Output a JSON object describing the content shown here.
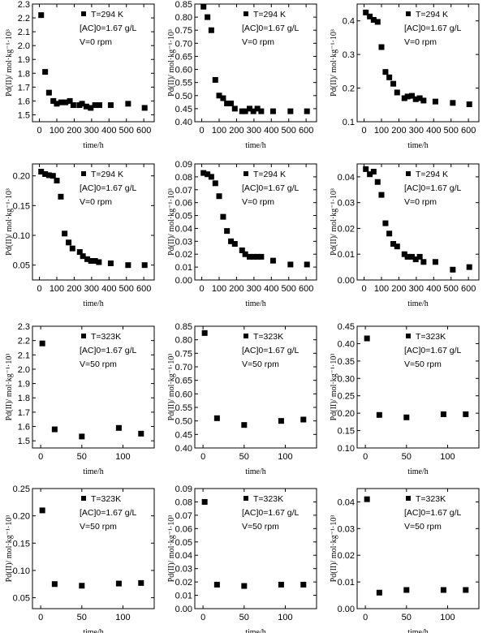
{
  "chart_data": [
    {
      "type": "scatter",
      "xlabel": "time/h",
      "ylabel": "Pd(II)/ mol·kg⁻¹·10³",
      "xlim": [
        -40,
        660
      ],
      "ylim": [
        1.45,
        2.3
      ],
      "xticks": [
        0,
        100,
        200,
        300,
        400,
        500,
        600
      ],
      "yticks": [
        1.5,
        1.6,
        1.7,
        1.8,
        1.9,
        2.0,
        2.1,
        2.2,
        2.3
      ],
      "ydec": 1,
      "legend": [
        "T=294 K",
        "[AC]0=1.67 g/L",
        "V=0 rpm"
      ],
      "x": [
        10,
        33,
        55,
        80,
        100,
        125,
        150,
        175,
        195,
        230,
        245,
        270,
        295,
        320,
        345,
        410,
        510,
        605
      ],
      "y": [
        2.22,
        1.81,
        1.66,
        1.6,
        1.58,
        1.59,
        1.59,
        1.6,
        1.57,
        1.57,
        1.58,
        1.56,
        1.55,
        1.57,
        1.57,
        1.57,
        1.58,
        1.55
      ]
    },
    {
      "type": "scatter",
      "xlabel": "time/h",
      "ylabel": "Pd(II)/ mol·kg⁻¹·10³",
      "xlim": [
        -40,
        660
      ],
      "ylim": [
        0.4,
        0.85
      ],
      "xticks": [
        0,
        100,
        200,
        300,
        400,
        500,
        600
      ],
      "yticks": [
        0.4,
        0.45,
        0.5,
        0.55,
        0.6,
        0.65,
        0.7,
        0.75,
        0.8,
        0.85
      ],
      "ydec": 2,
      "legend": [
        "T=294 K",
        "[AC]0=1.67 g/L",
        "V=0 rpm"
      ],
      "x": [
        10,
        33,
        55,
        78,
        100,
        123,
        145,
        168,
        190,
        232,
        250,
        275,
        297,
        320,
        342,
        410,
        510,
        605
      ],
      "y": [
        0.84,
        0.8,
        0.75,
        0.56,
        0.5,
        0.49,
        0.47,
        0.47,
        0.45,
        0.44,
        0.44,
        0.45,
        0.44,
        0.45,
        0.44,
        0.44,
        0.44,
        0.44
      ]
    },
    {
      "type": "scatter",
      "xlabel": "time/h",
      "ylabel": "Pd(II)/ mol·kg⁻¹·10³",
      "xlim": [
        -40,
        660
      ],
      "ylim": [
        0.1,
        0.45
      ],
      "xticks": [
        0,
        100,
        200,
        300,
        400,
        500,
        600
      ],
      "yticks": [
        0.1,
        0.2,
        0.3,
        0.4
      ],
      "ydec": 1,
      "legend": [
        "T=294 K",
        "[AC]0=1.67 g/L",
        "V=0 rpm"
      ],
      "x": [
        10,
        33,
        55,
        78,
        100,
        123,
        145,
        168,
        190,
        232,
        250,
        275,
        297,
        320,
        342,
        410,
        510,
        605
      ],
      "y": [
        0.425,
        0.413,
        0.403,
        0.397,
        0.322,
        0.248,
        0.232,
        0.213,
        0.187,
        0.17,
        0.175,
        0.177,
        0.167,
        0.17,
        0.163,
        0.16,
        0.156,
        0.152
      ]
    },
    {
      "type": "scatter",
      "xlabel": "time/h",
      "ylabel": "Pd(II)/ mol·kg⁻¹·10³",
      "xlim": [
        -40,
        660
      ],
      "ylim": [
        0.025,
        0.22
      ],
      "xticks": [
        0,
        100,
        200,
        300,
        400,
        500,
        600
      ],
      "yticks": [
        0.05,
        0.1,
        0.15,
        0.2
      ],
      "ydec": 2,
      "legend": [
        "T=294 K",
        "[AC]0=1.67 g/L",
        "V=0 rpm"
      ],
      "x": [
        10,
        33,
        55,
        78,
        100,
        123,
        145,
        168,
        190,
        232,
        250,
        275,
        297,
        320,
        342,
        410,
        510,
        605
      ],
      "y": [
        0.207,
        0.203,
        0.201,
        0.2,
        0.192,
        0.165,
        0.103,
        0.088,
        0.078,
        0.072,
        0.065,
        0.06,
        0.057,
        0.057,
        0.055,
        0.053,
        0.05,
        0.05
      ]
    },
    {
      "type": "scatter",
      "xlabel": "time/h",
      "ylabel": "Pd(II)/ mol·kg⁻¹·10³",
      "xlim": [
        -40,
        660
      ],
      "ylim": [
        0,
        0.09
      ],
      "xticks": [
        0,
        100,
        200,
        300,
        400,
        500,
        600
      ],
      "yticks": [
        0,
        0.01,
        0.02,
        0.03,
        0.04,
        0.05,
        0.06,
        0.07,
        0.08,
        0.09
      ],
      "ydec": 2,
      "legend": [
        "T=294 K",
        "[AC]0=1.67 g/L",
        "V=0 rpm"
      ],
      "x": [
        10,
        33,
        55,
        78,
        100,
        123,
        145,
        168,
        190,
        232,
        250,
        275,
        297,
        320,
        342,
        410,
        510,
        605
      ],
      "y": [
        0.083,
        0.082,
        0.08,
        0.075,
        0.065,
        0.049,
        0.038,
        0.03,
        0.028,
        0.023,
        0.02,
        0.018,
        0.018,
        0.018,
        0.018,
        0.015,
        0.012,
        0.012
      ]
    },
    {
      "type": "scatter",
      "xlabel": "time/h",
      "ylabel": "Pd(II)/ mol·kg⁻¹·10³",
      "xlim": [
        -40,
        660
      ],
      "ylim": [
        0,
        0.045
      ],
      "xticks": [
        0,
        100,
        200,
        300,
        400,
        500,
        600
      ],
      "yticks": [
        0,
        0.01,
        0.02,
        0.03,
        0.04
      ],
      "ydec": 2,
      "legend": [
        "T=294 K",
        "[AC]0=1.67 g/L",
        "V=0 rpm"
      ],
      "x": [
        10,
        33,
        55,
        78,
        100,
        123,
        145,
        168,
        190,
        232,
        250,
        275,
        297,
        320,
        342,
        410,
        510,
        605
      ],
      "y": [
        0.043,
        0.041,
        0.042,
        0.038,
        0.033,
        0.022,
        0.018,
        0.014,
        0.013,
        0.01,
        0.009,
        0.009,
        0.008,
        0.009,
        0.007,
        0.007,
        0.004,
        0.005
      ]
    },
    {
      "type": "scatter",
      "xlabel": "time/h",
      "ylabel": "Pd(II)/ mol·kg⁻¹·10³",
      "xlim": [
        -10,
        138
      ],
      "ylim": [
        1.45,
        2.3
      ],
      "xticks": [
        0,
        50,
        100
      ],
      "yticks": [
        1.5,
        1.6,
        1.7,
        1.8,
        1.9,
        2.0,
        2.1,
        2.2,
        2.3
      ],
      "ydec": 1,
      "legend": [
        "T=323K",
        "[AC]0=1.67 g/L",
        "V=50 rpm"
      ],
      "x": [
        2,
        17,
        50,
        95,
        122
      ],
      "y": [
        2.18,
        1.58,
        1.53,
        1.59,
        1.55
      ]
    },
    {
      "type": "scatter",
      "xlabel": "time/h",
      "ylabel": "Pd(II)/ mol·kg⁻¹·10³",
      "xlim": [
        -10,
        138
      ],
      "ylim": [
        0.4,
        0.85
      ],
      "xticks": [
        0,
        50,
        100
      ],
      "yticks": [
        0.4,
        0.45,
        0.5,
        0.55,
        0.6,
        0.65,
        0.7,
        0.75,
        0.8,
        0.85
      ],
      "ydec": 2,
      "legend": [
        "T=323K",
        "[AC]0=1.67 g/L",
        "V=50 rpm"
      ],
      "x": [
        2,
        17,
        50,
        95,
        122
      ],
      "y": [
        0.825,
        0.51,
        0.485,
        0.5,
        0.505
      ]
    },
    {
      "type": "scatter",
      "xlabel": "time/h",
      "ylabel": "Pd(II)/ mol·kg⁻¹·10³",
      "xlim": [
        -10,
        138
      ],
      "ylim": [
        0.1,
        0.45
      ],
      "xticks": [
        0,
        50,
        100
      ],
      "yticks": [
        0.1,
        0.15,
        0.2,
        0.25,
        0.3,
        0.35,
        0.4,
        0.45
      ],
      "ydec": 2,
      "legend": [
        "T=323K",
        "[AC]0=1.67 g/L",
        "V=50 rpm"
      ],
      "x": [
        2,
        17,
        50,
        95,
        122
      ],
      "y": [
        0.415,
        0.195,
        0.188,
        0.197,
        0.197
      ]
    },
    {
      "type": "scatter",
      "xlabel": "time/h",
      "ylabel": "Pd(II)/ mol·kg⁻¹·10³",
      "xlim": [
        -10,
        138
      ],
      "ylim": [
        0.03,
        0.25
      ],
      "xticks": [
        0,
        50,
        100
      ],
      "yticks": [
        0.05,
        0.1,
        0.15,
        0.2,
        0.25
      ],
      "ydec": 2,
      "legend": [
        "T=323K",
        "[AC]0=1.67 g/L",
        "V=50 rpm"
      ],
      "x": [
        2,
        17,
        50,
        95,
        122
      ],
      "y": [
        0.21,
        0.075,
        0.072,
        0.076,
        0.077
      ]
    },
    {
      "type": "scatter",
      "xlabel": "time/h",
      "ylabel": "Pd(II)/ mol·kg⁻¹·10³",
      "xlim": [
        -10,
        138
      ],
      "ylim": [
        0,
        0.09
      ],
      "xticks": [
        0,
        50,
        100
      ],
      "yticks": [
        0,
        0.01,
        0.02,
        0.03,
        0.04,
        0.05,
        0.06,
        0.07,
        0.08,
        0.09
      ],
      "ydec": 2,
      "legend": [
        "T=323K",
        "[AC]0=1.67 g/L",
        "V=50 rpm"
      ],
      "x": [
        2,
        17,
        50,
        95,
        122
      ],
      "y": [
        0.08,
        0.018,
        0.017,
        0.018,
        0.018
      ]
    },
    {
      "type": "scatter",
      "xlabel": "time/h",
      "ylabel": "Pd(II)/ mol·kg⁻¹·10³",
      "xlim": [
        -10,
        138
      ],
      "ylim": [
        0,
        0.045
      ],
      "xticks": [
        0,
        50,
        100
      ],
      "yticks": [
        0,
        0.01,
        0.02,
        0.03,
        0.04
      ],
      "ydec": 2,
      "legend": [
        "T=323K",
        "[AC]0=1.67 g/L",
        "V=50 rpm"
      ],
      "x": [
        2,
        17,
        50,
        95,
        122
      ],
      "y": [
        0.041,
        0.006,
        0.007,
        0.007,
        0.007
      ]
    }
  ]
}
